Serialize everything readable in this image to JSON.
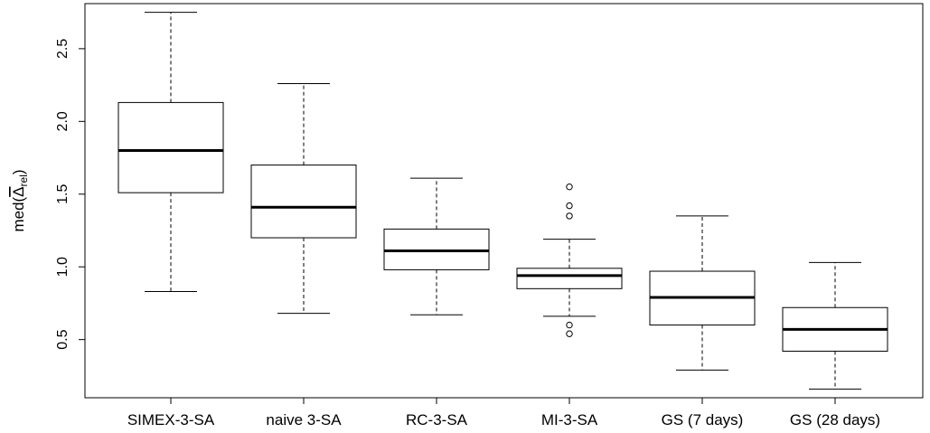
{
  "chart_data": {
    "type": "boxplot",
    "title": "",
    "xlabel": "",
    "ylabel": {
      "main": "med(",
      "symbol": "Δ",
      "subscript": "rel",
      "close": ")"
    },
    "yticks": [
      0.5,
      1.0,
      1.5,
      2.0,
      2.5
    ],
    "ytick_labels": [
      "0.5",
      "1.0",
      "1.5",
      "2.0",
      "2.5"
    ],
    "ylim": [
      0.1,
      2.81
    ],
    "grid": false,
    "categories": [
      "SIMEX-3-SA",
      "naive 3-SA",
      "RC-3-SA",
      "MI-3-SA",
      "GS (7 days)",
      "GS (28 days)"
    ],
    "boxes": [
      {
        "label": "SIMEX-3-SA",
        "whisker_low": 0.83,
        "q1": 1.51,
        "median": 1.8,
        "q3": 2.13,
        "whisker_high": 2.75,
        "outliers": []
      },
      {
        "label": "naive 3-SA",
        "whisker_low": 0.68,
        "q1": 1.2,
        "median": 1.41,
        "q3": 1.7,
        "whisker_high": 2.26,
        "outliers": []
      },
      {
        "label": "RC-3-SA",
        "whisker_low": 0.67,
        "q1": 0.98,
        "median": 1.11,
        "q3": 1.26,
        "whisker_high": 1.61,
        "outliers": []
      },
      {
        "label": "MI-3-SA",
        "whisker_low": 0.66,
        "q1": 0.85,
        "median": 0.94,
        "q3": 0.99,
        "whisker_high": 1.19,
        "outliers": [
          0.54,
          0.6,
          1.35,
          1.42,
          1.55
        ]
      },
      {
        "label": "GS (7 days)",
        "whisker_low": 0.29,
        "q1": 0.6,
        "median": 0.79,
        "q3": 0.97,
        "whisker_high": 1.35,
        "outliers": []
      },
      {
        "label": "GS (28 days)",
        "whisker_low": 0.16,
        "q1": 0.42,
        "median": 0.57,
        "q3": 0.72,
        "whisker_high": 1.03,
        "outliers": []
      }
    ]
  }
}
